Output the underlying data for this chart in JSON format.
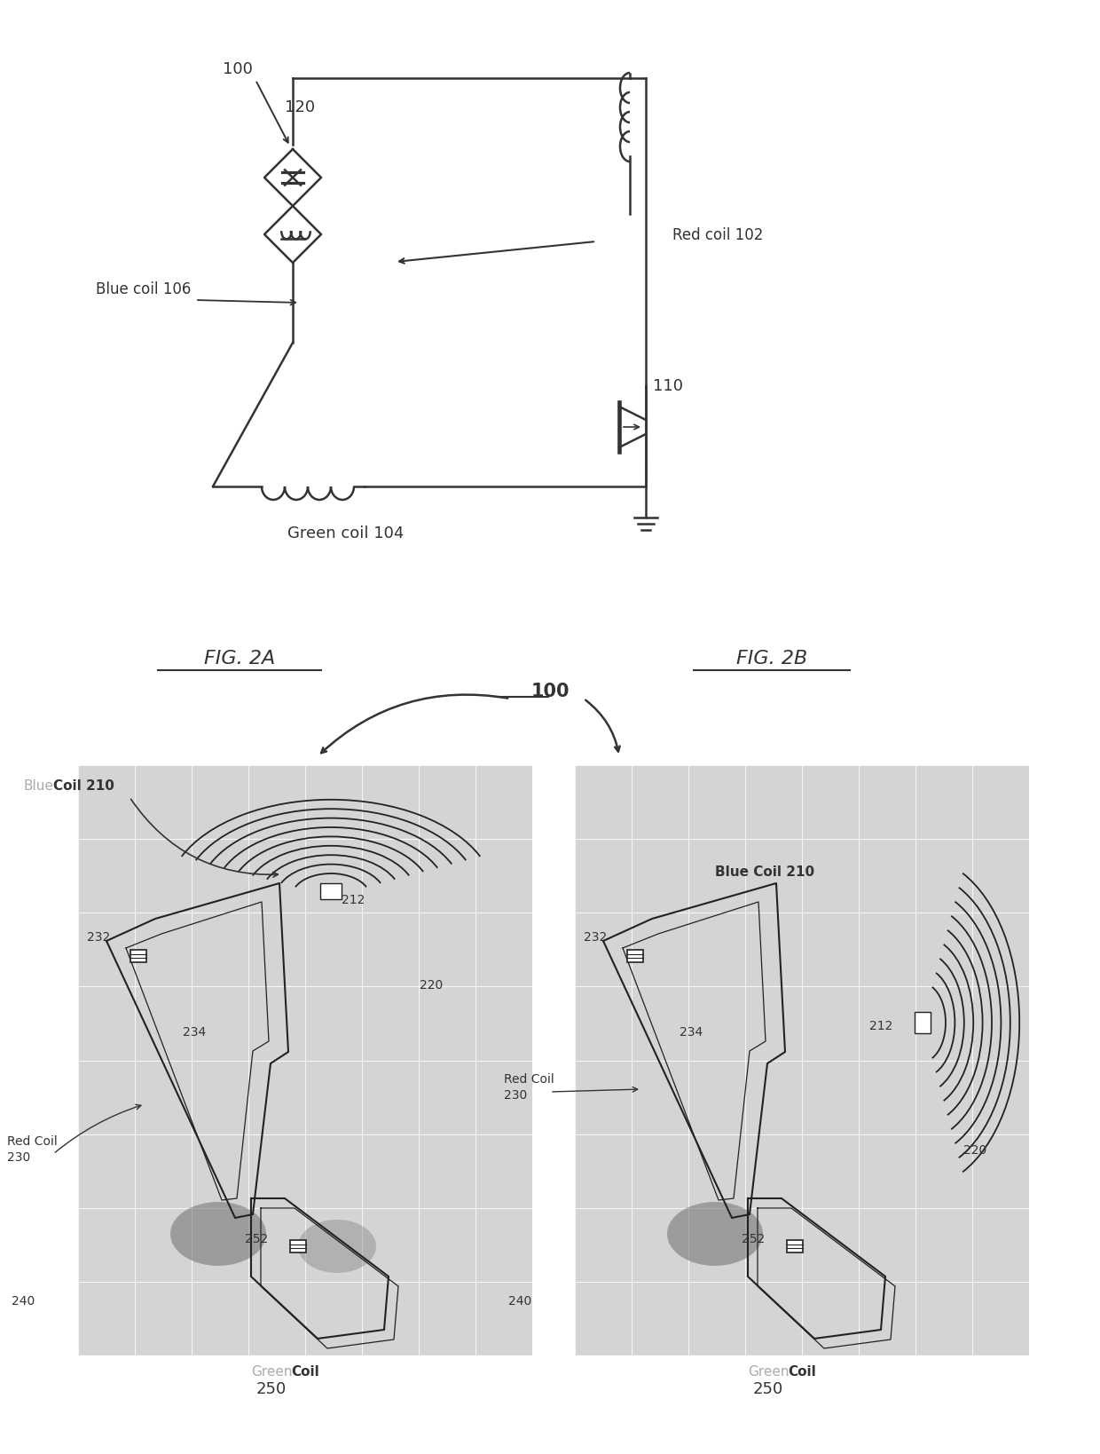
{
  "bg_color": "#ffffff",
  "fig_width": 12.4,
  "fig_height": 16.38,
  "line_color": "#333333",
  "grid_color": "#cccccc",
  "image_bg": "#c0c0c0",
  "gray_text": "#aaaaaa",
  "labels": {
    "100_top": "100",
    "120": "120",
    "red_coil_102": "Red coil 102",
    "blue_coil_106": "Blue coil 106",
    "green_coil_104": "Green coil 104",
    "110": "110",
    "fig2a": "FIG. 2A",
    "fig2b": "FIG. 2B",
    "100_mid": "100",
    "blue_coil_210": "Blue Coil 210",
    "212": "212",
    "232": "232",
    "234": "234",
    "220": "220",
    "red_coil_230": "Red Coil",
    "230": "230",
    "240": "240",
    "252": "252",
    "green_coil": "Green",
    "coil_word": "Coil",
    "250": "250",
    "blue_word": "Blue"
  }
}
